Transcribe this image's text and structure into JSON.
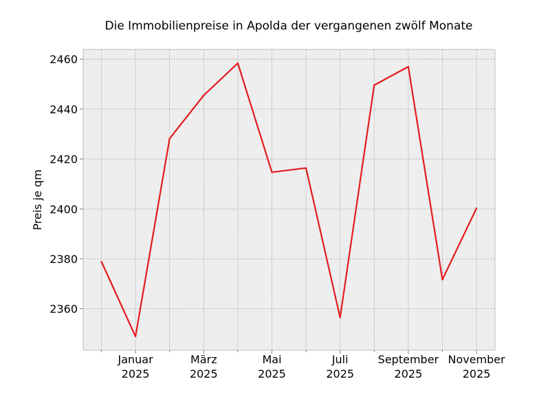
{
  "chart_data": {
    "type": "line",
    "title": "Die Immobilienpreise in Apolda der vergangenen zwölf Monate",
    "xlabel": "",
    "ylabel": "Preis je qm",
    "x": [
      "2024-12",
      "2025-01",
      "2025-02",
      "2025-03",
      "2025-04",
      "2025-05",
      "2025-06",
      "2025-07",
      "2025-08",
      "2025-09",
      "2025-10",
      "2025-11"
    ],
    "series": [
      {
        "values": [
          2378.9,
          2348.9,
          2428.2,
          2445.5,
          2458.4,
          2414.7,
          2416.4,
          2356.5,
          2449.6,
          2457.0,
          2371.7,
          2400.3
        ]
      }
    ],
    "x_tick_labels": [
      {
        "line1": "Januar",
        "line2": "2025"
      },
      {
        "line1": "März",
        "line2": "2025"
      },
      {
        "line1": "Mai",
        "line2": "2025"
      },
      {
        "line1": "Juli",
        "line2": "2025"
      },
      {
        "line1": "September",
        "line2": "2025"
      },
      {
        "line1": "November",
        "line2": "2025"
      }
    ],
    "y_ticks": [
      2360,
      2380,
      2400,
      2420,
      2440,
      2460
    ],
    "ylim": [
      2343.4,
      2463.9
    ],
    "grid": true,
    "line_color": "#e31a1c",
    "plot_background": "#eeeeee",
    "grid_color": "#b0b0b0"
  }
}
